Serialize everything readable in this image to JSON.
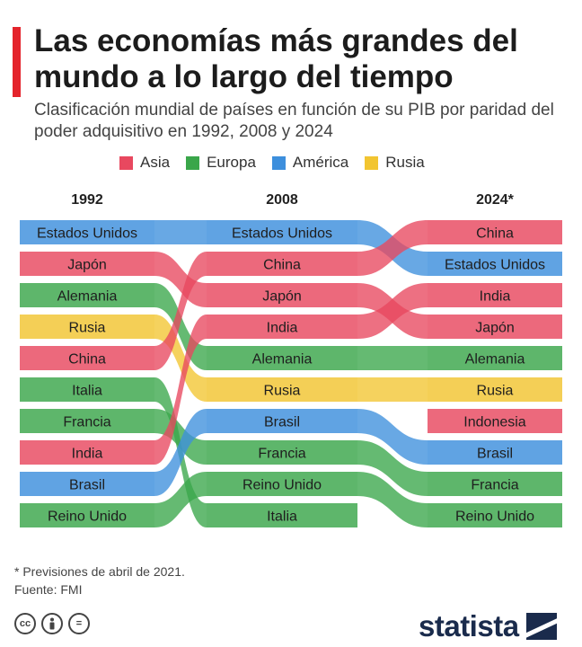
{
  "header": {
    "title": "Las economías más grandes del mundo a lo largo del tiempo",
    "subtitle": "Clasificación mundial de países en función de su PIB por paridad del poder adquisitivo en 1992, 2008 y 2024"
  },
  "legend": [
    {
      "label": "Asia",
      "color": "#e8485f"
    },
    {
      "label": "Europa",
      "color": "#3aa64a"
    },
    {
      "label": "América",
      "color": "#3d8fdd"
    },
    {
      "label": "Rusia",
      "color": "#f2c531"
    }
  ],
  "colors": {
    "Asia": "#e8485f",
    "Europa": "#3aa64a",
    "América": "#3d8fdd",
    "Rusia": "#f2c531"
  },
  "chart_data": {
    "type": "bump",
    "years": [
      "1992",
      "2008",
      "2024*"
    ],
    "countries": [
      {
        "name": "Estados Unidos",
        "region": "América",
        "ranks": [
          1,
          1,
          2
        ]
      },
      {
        "name": "Japón",
        "region": "Asia",
        "ranks": [
          2,
          3,
          4
        ]
      },
      {
        "name": "Alemania",
        "region": "Europa",
        "ranks": [
          3,
          5,
          5
        ]
      },
      {
        "name": "Rusia",
        "region": "Rusia",
        "ranks": [
          4,
          6,
          6
        ]
      },
      {
        "name": "China",
        "region": "Asia",
        "ranks": [
          5,
          2,
          1
        ]
      },
      {
        "name": "Italia",
        "region": "Europa",
        "ranks": [
          6,
          10,
          null
        ]
      },
      {
        "name": "Francia",
        "region": "Europa",
        "ranks": [
          7,
          8,
          9
        ]
      },
      {
        "name": "India",
        "region": "Asia",
        "ranks": [
          8,
          4,
          3
        ]
      },
      {
        "name": "Brasil",
        "region": "América",
        "ranks": [
          9,
          7,
          8
        ]
      },
      {
        "name": "Reino Unido",
        "region": "Europa",
        "ranks": [
          10,
          9,
          10
        ]
      },
      {
        "name": "Indonesia",
        "region": "Asia",
        "ranks": [
          null,
          null,
          7
        ]
      }
    ]
  },
  "footer": {
    "note": "* Previsiones de abril de 2021.",
    "source": "Fuente: FMI",
    "license_icons": [
      "cc",
      "by",
      "nd"
    ],
    "brand": "statista"
  }
}
